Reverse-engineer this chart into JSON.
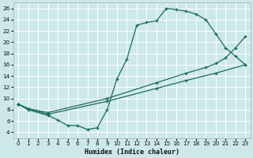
{
  "bg_color": "#cde8e8",
  "grid_color": "#b0d4d4",
  "line_color": "#1a6b5a",
  "xlabel": "Humidex (Indice chaleur)",
  "xlim": [
    -0.5,
    23.5
  ],
  "ylim": [
    3,
    27
  ],
  "xticks": [
    0,
    1,
    2,
    3,
    4,
    5,
    6,
    7,
    8,
    9,
    10,
    11,
    12,
    13,
    14,
    15,
    16,
    17,
    18,
    19,
    20,
    21,
    22,
    23
  ],
  "yticks": [
    4,
    6,
    8,
    10,
    12,
    14,
    16,
    18,
    20,
    22,
    24,
    26
  ],
  "line1_x": [
    0,
    1,
    3,
    4,
    5,
    6,
    7,
    8,
    9,
    10,
    11,
    12,
    13,
    14,
    15,
    16,
    17,
    18,
    19,
    20,
    21,
    22,
    23
  ],
  "line1_y": [
    9.0,
    8.0,
    7.0,
    6.2,
    5.2,
    5.2,
    4.5,
    4.8,
    8.0,
    13.5,
    17.0,
    23.0,
    23.5,
    23.8,
    26.0,
    25.8,
    25.5,
    25.0,
    24.0,
    21.5,
    19.0,
    17.5,
    16.0
  ],
  "line2_x": [
    0,
    1,
    3,
    9,
    14,
    17,
    19,
    20,
    21,
    22,
    23
  ],
  "line2_y": [
    9.0,
    8.2,
    7.5,
    10.0,
    12.8,
    14.5,
    15.5,
    16.2,
    17.2,
    19.0,
    21.0
  ],
  "line3_x": [
    0,
    1,
    3,
    9,
    14,
    17,
    20,
    23
  ],
  "line3_y": [
    9.0,
    8.2,
    7.2,
    9.5,
    11.8,
    13.2,
    14.5,
    16.0
  ]
}
